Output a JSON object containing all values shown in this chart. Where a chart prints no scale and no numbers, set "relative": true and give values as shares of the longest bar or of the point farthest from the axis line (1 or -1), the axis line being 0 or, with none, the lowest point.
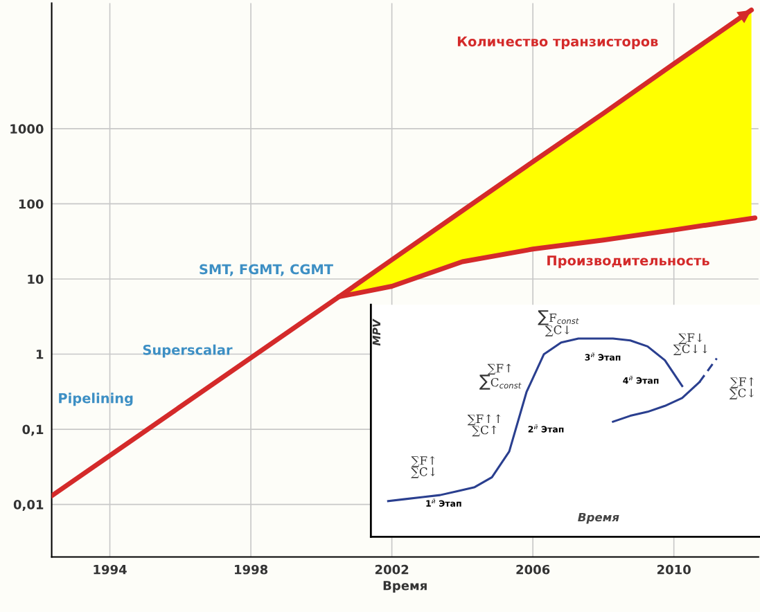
{
  "chart_data": [
    {
      "type": "line",
      "xlabel": "Время",
      "xlim": [
        1992.35,
        2012.4
      ],
      "ylim": [
        0.002,
        47000
      ],
      "log": "y",
      "grid": true,
      "xticks": [
        1994,
        1998,
        2002,
        2006,
        2010
      ],
      "yticks": [
        {
          "value": 0.01,
          "label": "0,01"
        },
        {
          "value": 0.1,
          "label": "0,1"
        },
        1,
        10,
        100,
        1000
      ],
      "series": [
        {
          "name": "Количество транзисторов",
          "color": "#d42a2a",
          "x": [
            1992.35,
            2000.5,
            2002,
            2004,
            2006,
            2008,
            2010,
            2012.2
          ],
          "values": [
            0.013,
            5.8,
            18,
            81,
            363,
            1600,
            7300,
            38000
          ]
        },
        {
          "name": "Производительность",
          "color": "#d42a2a",
          "x": [
            2000.5,
            2002,
            2004,
            2006,
            2008,
            2010,
            2012.3
          ],
          "values": [
            5.8,
            8,
            17,
            25,
            33,
            45,
            65
          ]
        }
      ],
      "annotations": [
        "SMT, FGMT, CGMT",
        "Superscalar",
        "Pipelining"
      ]
    },
    {
      "type": "line",
      "relative": true,
      "xlabel": "Время",
      "ylabel": "MPV",
      "categories": [
        null,
        null,
        null,
        null,
        null,
        null,
        null,
        null,
        null,
        null,
        null,
        null,
        null,
        null,
        null,
        null,
        null,
        null,
        null,
        null,
        null
      ],
      "series": [
        {
          "color": "#2a3f8f",
          "values": [
            0.18,
            0.19,
            0.2,
            0.21,
            0.23,
            0.25,
            0.3,
            0.43,
            0.73,
            0.92,
            0.98,
            1.0,
            1.0,
            1.0,
            0.99,
            0.96,
            0.89,
            0.76,
            null,
            null,
            null
          ]
        },
        {
          "color": "#2a3f8f",
          "values": [
            null,
            null,
            null,
            null,
            null,
            null,
            null,
            null,
            null,
            null,
            null,
            null,
            null,
            0.58,
            0.61,
            0.63,
            0.66,
            0.7,
            0.78,
            null,
            null
          ]
        },
        {
          "color": "#2a3f8f",
          "line_style": "dashed",
          "values": [
            null,
            null,
            null,
            null,
            null,
            null,
            null,
            null,
            null,
            null,
            null,
            null,
            null,
            null,
            null,
            null,
            null,
            null,
            0.78,
            0.9,
            null
          ]
        }
      ],
      "annotations": [
        "∑F↑\n∑C↓",
        "∑F↑↑\n∑C↑",
        "∑F↑\n∑C$_{const}$",
        "∑F$_{const}$\n∑C↓",
        "∑F↓\n∑C↓↓",
        "∑F↑\n∑C↓",
        "1$^{й}$ Этап",
        "2$^{й}$ Этап",
        "3$^{й}$ Этап",
        "4$^{й}$ Этап"
      ]
    }
  ]
}
